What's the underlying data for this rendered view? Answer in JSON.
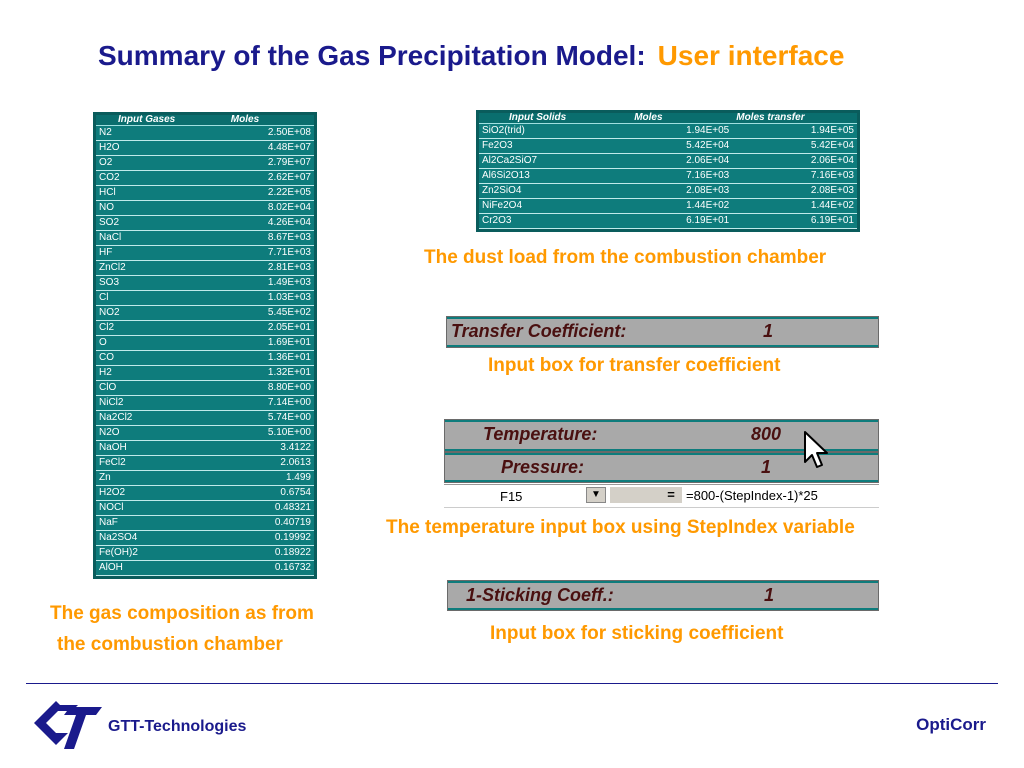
{
  "title": {
    "main": "Summary of the Gas Precipitation Model:",
    "accent": "User interface"
  },
  "gas_table": {
    "headers": [
      "Input Gases",
      "Moles"
    ],
    "rows": [
      [
        "N2",
        "2.50E+08"
      ],
      [
        "H2O",
        "4.48E+07"
      ],
      [
        "O2",
        "2.79E+07"
      ],
      [
        "CO2",
        "2.62E+07"
      ],
      [
        "HCl",
        "2.22E+05"
      ],
      [
        "NO",
        "8.02E+04"
      ],
      [
        "SO2",
        "4.26E+04"
      ],
      [
        "NaCl",
        "8.67E+03"
      ],
      [
        "HF",
        "7.71E+03"
      ],
      [
        "ZnCl2",
        "2.81E+03"
      ],
      [
        "SO3",
        "1.49E+03"
      ],
      [
        "Cl",
        "1.03E+03"
      ],
      [
        "NO2",
        "5.45E+02"
      ],
      [
        "Cl2",
        "2.05E+01"
      ],
      [
        "O",
        "1.69E+01"
      ],
      [
        "CO",
        "1.36E+01"
      ],
      [
        "H2",
        "1.32E+01"
      ],
      [
        "ClO",
        "8.80E+00"
      ],
      [
        "NiCl2",
        "7.14E+00"
      ],
      [
        "Na2Cl2",
        "5.74E+00"
      ],
      [
        "N2O",
        "5.10E+00"
      ],
      [
        "NaOH",
        "3.4122"
      ],
      [
        "FeCl2",
        "2.0613"
      ],
      [
        "Zn",
        "1.499"
      ],
      [
        "H2O2",
        "0.6754"
      ],
      [
        "NOCl",
        "0.48321"
      ],
      [
        "NaF",
        "0.40719"
      ],
      [
        "Na2SO4",
        "0.19992"
      ],
      [
        "Fe(OH)2",
        "0.18922"
      ],
      [
        "AlOH",
        "0.16732"
      ]
    ]
  },
  "solids_table": {
    "headers": [
      "Input Solids",
      "Moles",
      "Moles transfer"
    ],
    "rows": [
      [
        "SiO2(trid)",
        "1.94E+05",
        "1.94E+05"
      ],
      [
        "Fe2O3",
        "5.42E+04",
        "5.42E+04"
      ],
      [
        "Al2Ca2SiO7",
        "2.06E+04",
        "2.06E+04"
      ],
      [
        "Al6Si2O13",
        "7.16E+03",
        "7.16E+03"
      ],
      [
        "Zn2SiO4",
        "2.08E+03",
        "2.08E+03"
      ],
      [
        "NiFe2O4",
        "1.44E+02",
        "1.44E+02"
      ],
      [
        "Cr2O3",
        "6.19E+01",
        "6.19E+01"
      ]
    ]
  },
  "captions": {
    "dust": "The dust load from the combustion chamber",
    "transfer": "Input box for transfer coefficient",
    "temperature": "The temperature input box using StepIndex variable",
    "sticking": "Input box for sticking coefficient",
    "gas_line1": "The gas composition as from",
    "gas_line2": "the combustion chamber"
  },
  "transfer_box": {
    "label": "Transfer Coefficient:",
    "value": "1"
  },
  "temperature_box": {
    "label": "Temperature:",
    "value": "800"
  },
  "pressure_box": {
    "label": "Pressure:",
    "value": "1"
  },
  "formula_bar": {
    "cell": "F15",
    "eq": "=",
    "formula": "=800-(StepIndex-1)*25"
  },
  "sticking_box": {
    "label": "1-Sticking Coeff.:",
    "value": "1"
  },
  "footer": {
    "company": "GTT-Technologies",
    "product": "OptiCorr"
  },
  "colors": {
    "title": "#1a1a8c",
    "accent": "#ff9900",
    "table_bg": "#0e7c7c"
  }
}
